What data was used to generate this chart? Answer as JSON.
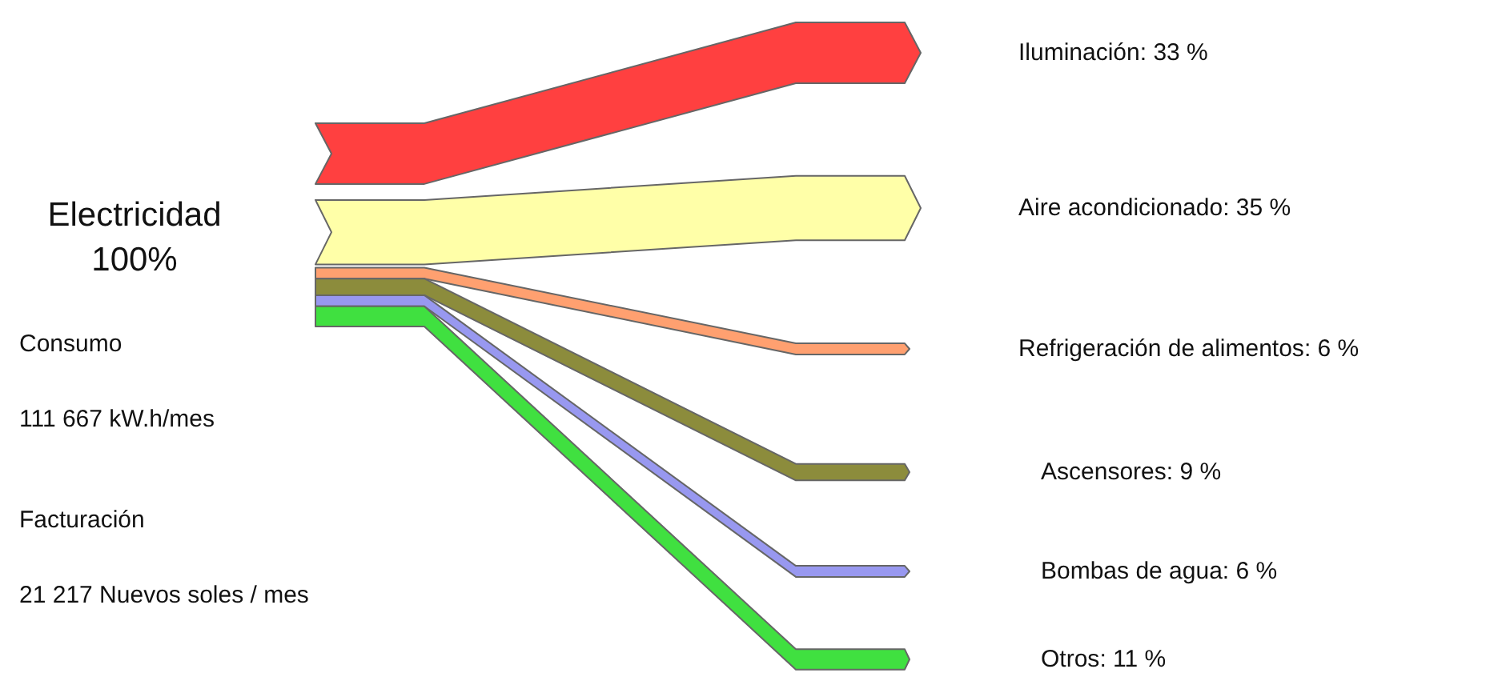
{
  "chart_data": {
    "type": "other",
    "categories": [
      "Iluminación",
      "Aire acondicionado",
      "Refrigeración de alimentos",
      "Ascensores",
      "Bombas de agua",
      "Otros"
    ],
    "values": [
      33,
      35,
      6,
      9,
      6,
      11
    ],
    "value_labels": [
      ": 33 %",
      ": 35 %",
      ": 6 %",
      ": 9 %",
      ": 6 %",
      ": 11 %"
    ],
    "colors": [
      "#ff4040",
      "#ffffa8",
      "#ffa070",
      "#8c8c3c",
      "#9898f0",
      "#40e040"
    ],
    "annotations": [
      "Electricidad",
      "100%",
      "Consumo",
      "111 667 kW.h/mes",
      "Facturación",
      "21 217 Nuevos soles / mes"
    ]
  }
}
